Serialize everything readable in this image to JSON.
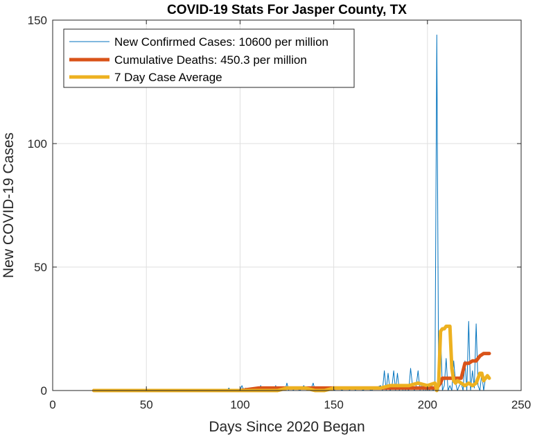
{
  "chart_data": {
    "type": "line",
    "title": "COVID-19 Stats For Jasper County, TX",
    "xlabel": "Days Since 2020 Began",
    "ylabel": "New COVID-19 Cases",
    "xlim": [
      0,
      250
    ],
    "ylim": [
      0,
      150
    ],
    "xticks": [
      0,
      50,
      100,
      150,
      200,
      250
    ],
    "yticks": [
      0,
      50,
      100,
      150
    ],
    "grid": true,
    "legend_position": "top-left",
    "series": [
      {
        "name": "New Confirmed Cases: 10600 per million",
        "color": "#0072BD",
        "width": "thin",
        "x": [
          22,
          30,
          40,
          50,
          60,
          70,
          80,
          90,
          93,
          94,
          95,
          98,
          100,
          101,
          102,
          103,
          105,
          110,
          111,
          112,
          115,
          118,
          119,
          120,
          124,
          125,
          126,
          128,
          130,
          132,
          134,
          136,
          138,
          139,
          140,
          142,
          145,
          148,
          150,
          152,
          155,
          158,
          160,
          162,
          165,
          168,
          170,
          172,
          175,
          176,
          177,
          178,
          179,
          180,
          181,
          182,
          183,
          184,
          185,
          186,
          187,
          188,
          189,
          190,
          191,
          192,
          193,
          194,
          195,
          196,
          197,
          198,
          199,
          200,
          201,
          202,
          203,
          204,
          205,
          206,
          207,
          208,
          209,
          210,
          211,
          212,
          213,
          214,
          215,
          216,
          217,
          218,
          219,
          220,
          221,
          222,
          223,
          224,
          225,
          226,
          227,
          228,
          229,
          230,
          231,
          232,
          233
        ],
        "y": [
          0,
          0,
          0,
          0,
          0,
          0,
          0,
          0,
          0,
          1,
          0,
          0,
          0,
          2,
          0,
          1,
          0,
          0,
          2,
          0,
          0,
          0,
          2,
          0,
          0,
          3,
          0,
          0,
          1,
          0,
          2,
          0,
          1,
          3,
          0,
          0,
          1,
          0,
          0,
          1,
          0,
          0,
          1,
          0,
          0,
          1,
          0,
          1,
          2,
          0,
          8,
          0,
          7,
          0,
          1,
          8,
          0,
          7,
          0,
          2,
          0,
          0,
          1,
          0,
          9,
          2,
          0,
          2,
          8,
          0,
          3,
          0,
          0,
          2,
          0,
          3,
          0,
          1,
          144,
          0,
          24,
          0,
          2,
          13,
          0,
          2,
          0,
          12,
          3,
          0,
          2,
          3,
          0,
          12,
          0,
          28,
          0,
          8,
          1,
          27,
          2,
          0,
          7,
          0,
          5,
          6,
          5
        ]
      },
      {
        "name": "Cumulative Deaths: 450.3 per million",
        "color": "#D95319",
        "width": "thick",
        "x": [
          22,
          100,
          110,
          120,
          130,
          160,
          180,
          195,
          205,
          206,
          207,
          208,
          210,
          212,
          215,
          218,
          220,
          222,
          224,
          226,
          228,
          230,
          232,
          233
        ],
        "y": [
          0,
          0,
          1,
          1,
          1,
          1,
          1,
          1,
          1,
          2,
          3,
          5,
          5,
          5,
          5,
          5,
          11,
          11,
          12,
          12,
          14,
          15,
          15,
          15
        ]
      },
      {
        "name": "7 Day Case Average",
        "color": "#EDB120",
        "width": "thick",
        "x": [
          22,
          50,
          90,
          100,
          110,
          120,
          125,
          130,
          135,
          140,
          145,
          150,
          160,
          170,
          175,
          180,
          185,
          190,
          195,
          200,
          204,
          205,
          206,
          207,
          208,
          209,
          210,
          211,
          212,
          213,
          214,
          215,
          216,
          218,
          220,
          222,
          224,
          226,
          228,
          229,
          230,
          231,
          232,
          233
        ],
        "y": [
          0,
          0,
          0,
          0,
          0,
          0,
          1,
          1,
          1,
          0,
          0,
          1,
          1,
          1,
          1,
          2,
          2,
          2,
          3,
          2,
          3,
          0,
          3,
          24,
          25,
          25,
          26,
          26,
          26,
          9,
          4,
          3,
          4,
          3,
          2,
          3,
          2,
          3,
          7,
          7,
          4,
          5,
          6,
          5
        ]
      }
    ]
  }
}
